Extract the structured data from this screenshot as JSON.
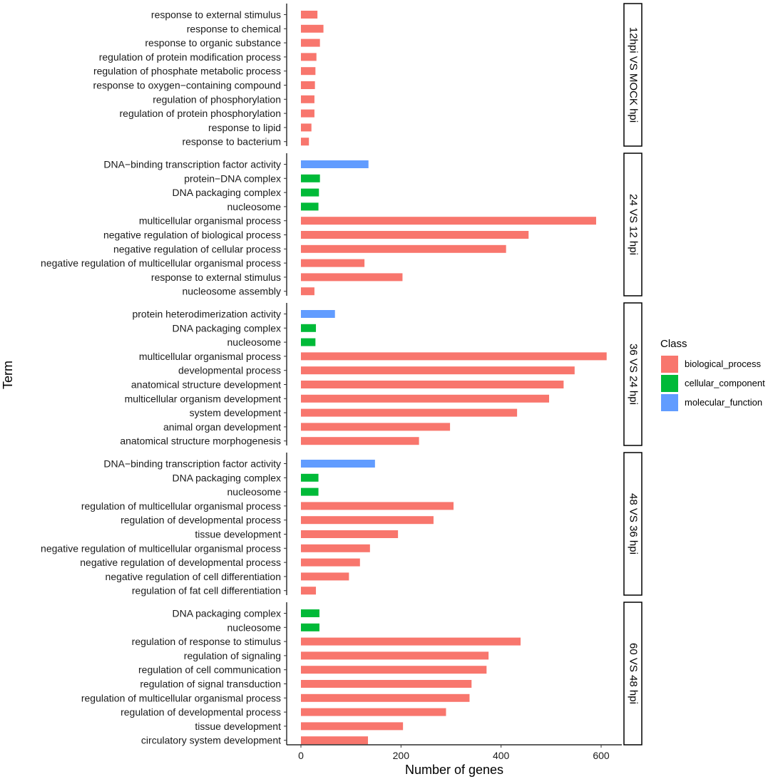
{
  "chart_data": {
    "type": "bar",
    "orientation": "horizontal",
    "xlabel": "Number of genes",
    "ylabel": "Term",
    "xlim": [
      -10,
      640
    ],
    "xticks": [
      0,
      200,
      400,
      600
    ],
    "grid": false,
    "legend": {
      "title": "Class",
      "position": "right",
      "items": [
        {
          "name": "biological_process",
          "color": "#F8766D"
        },
        {
          "name": "cellular_component",
          "color": "#00BA38"
        },
        {
          "name": "molecular_function",
          "color": "#619CFF"
        }
      ]
    },
    "facets": [
      {
        "label": "12hpi VS MOCK hpi",
        "bars": [
          {
            "term": "response to external stimulus",
            "value": 33,
            "class": "biological_process"
          },
          {
            "term": "response to chemical",
            "value": 45,
            "class": "biological_process"
          },
          {
            "term": "response to organic substance",
            "value": 38,
            "class": "biological_process"
          },
          {
            "term": "regulation of protein modification process",
            "value": 31,
            "class": "biological_process"
          },
          {
            "term": "regulation of phosphate metabolic process",
            "value": 29,
            "class": "biological_process"
          },
          {
            "term": "response to oxygen-containing compound",
            "value": 28,
            "class": "biological_process"
          },
          {
            "term": "regulation of phosphorylation",
            "value": 27,
            "class": "biological_process"
          },
          {
            "term": "regulation of protein phosphorylation",
            "value": 27,
            "class": "biological_process"
          },
          {
            "term": "response to lipid",
            "value": 21,
            "class": "biological_process"
          },
          {
            "term": "response to bacterium",
            "value": 16,
            "class": "biological_process"
          }
        ]
      },
      {
        "label": "24 VS 12 hpi",
        "bars": [
          {
            "term": "DNA-binding transcription factor activity",
            "value": 135,
            "class": "molecular_function"
          },
          {
            "term": "protein-DNA complex",
            "value": 38,
            "class": "cellular_component"
          },
          {
            "term": "DNA packaging complex",
            "value": 36,
            "class": "cellular_component"
          },
          {
            "term": "nucleosome",
            "value": 35,
            "class": "cellular_component"
          },
          {
            "term": "multicellular organismal process",
            "value": 590,
            "class": "biological_process"
          },
          {
            "term": "negative regulation of biological process",
            "value": 455,
            "class": "biological_process"
          },
          {
            "term": "negative regulation of cellular process",
            "value": 410,
            "class": "biological_process"
          },
          {
            "term": "negative regulation of multicellular organismal process",
            "value": 127,
            "class": "biological_process"
          },
          {
            "term": "response to external stimulus",
            "value": 203,
            "class": "biological_process"
          },
          {
            "term": "nucleosome assembly",
            "value": 27,
            "class": "biological_process"
          }
        ]
      },
      {
        "label": "36 VS 24 hpi",
        "bars": [
          {
            "term": "protein heterodimerization activity",
            "value": 68,
            "class": "molecular_function"
          },
          {
            "term": "DNA packaging complex",
            "value": 30,
            "class": "cellular_component"
          },
          {
            "term": "nucleosome",
            "value": 29,
            "class": "cellular_component"
          },
          {
            "term": "multicellular organismal process",
            "value": 611,
            "class": "biological_process"
          },
          {
            "term": "developmental process",
            "value": 547,
            "class": "biological_process"
          },
          {
            "term": "anatomical structure development",
            "value": 525,
            "class": "biological_process"
          },
          {
            "term": "multicellular organism development",
            "value": 496,
            "class": "biological_process"
          },
          {
            "term": "system development",
            "value": 432,
            "class": "biological_process"
          },
          {
            "term": "animal organ development",
            "value": 298,
            "class": "biological_process"
          },
          {
            "term": "anatomical structure morphogenesis",
            "value": 236,
            "class": "biological_process"
          }
        ]
      },
      {
        "label": "48 VS 36 hpi",
        "bars": [
          {
            "term": "DNA-binding transcription factor activity",
            "value": 148,
            "class": "molecular_function"
          },
          {
            "term": "DNA packaging complex",
            "value": 35,
            "class": "cellular_component"
          },
          {
            "term": "nucleosome",
            "value": 35,
            "class": "cellular_component"
          },
          {
            "term": "regulation of multicellular organismal process",
            "value": 305,
            "class": "biological_process"
          },
          {
            "term": "regulation of developmental process",
            "value": 265,
            "class": "biological_process"
          },
          {
            "term": "tissue development",
            "value": 194,
            "class": "biological_process"
          },
          {
            "term": "negative regulation of multicellular organismal process",
            "value": 138,
            "class": "biological_process"
          },
          {
            "term": "negative regulation of developmental process",
            "value": 118,
            "class": "biological_process"
          },
          {
            "term": "negative regulation of cell differentiation",
            "value": 96,
            "class": "biological_process"
          },
          {
            "term": "regulation of fat cell differentiation",
            "value": 30,
            "class": "biological_process"
          }
        ]
      },
      {
        "label": "60 VS 48 hpi",
        "bars": [
          {
            "term": "DNA packaging complex",
            "value": 37,
            "class": "cellular_component"
          },
          {
            "term": "nucleosome",
            "value": 37,
            "class": "cellular_component"
          },
          {
            "term": "regulation of response to stimulus",
            "value": 439,
            "class": "biological_process"
          },
          {
            "term": "regulation of signaling",
            "value": 375,
            "class": "biological_process"
          },
          {
            "term": "regulation of cell communication",
            "value": 371,
            "class": "biological_process"
          },
          {
            "term": "regulation of signal transduction",
            "value": 341,
            "class": "biological_process"
          },
          {
            "term": "regulation of multicellular organismal process",
            "value": 337,
            "class": "biological_process"
          },
          {
            "term": "regulation of developmental process",
            "value": 290,
            "class": "biological_process"
          },
          {
            "term": "tissue development",
            "value": 204,
            "class": "biological_process"
          },
          {
            "term": "circulatory system development",
            "value": 134,
            "class": "biological_process"
          }
        ]
      }
    ]
  }
}
